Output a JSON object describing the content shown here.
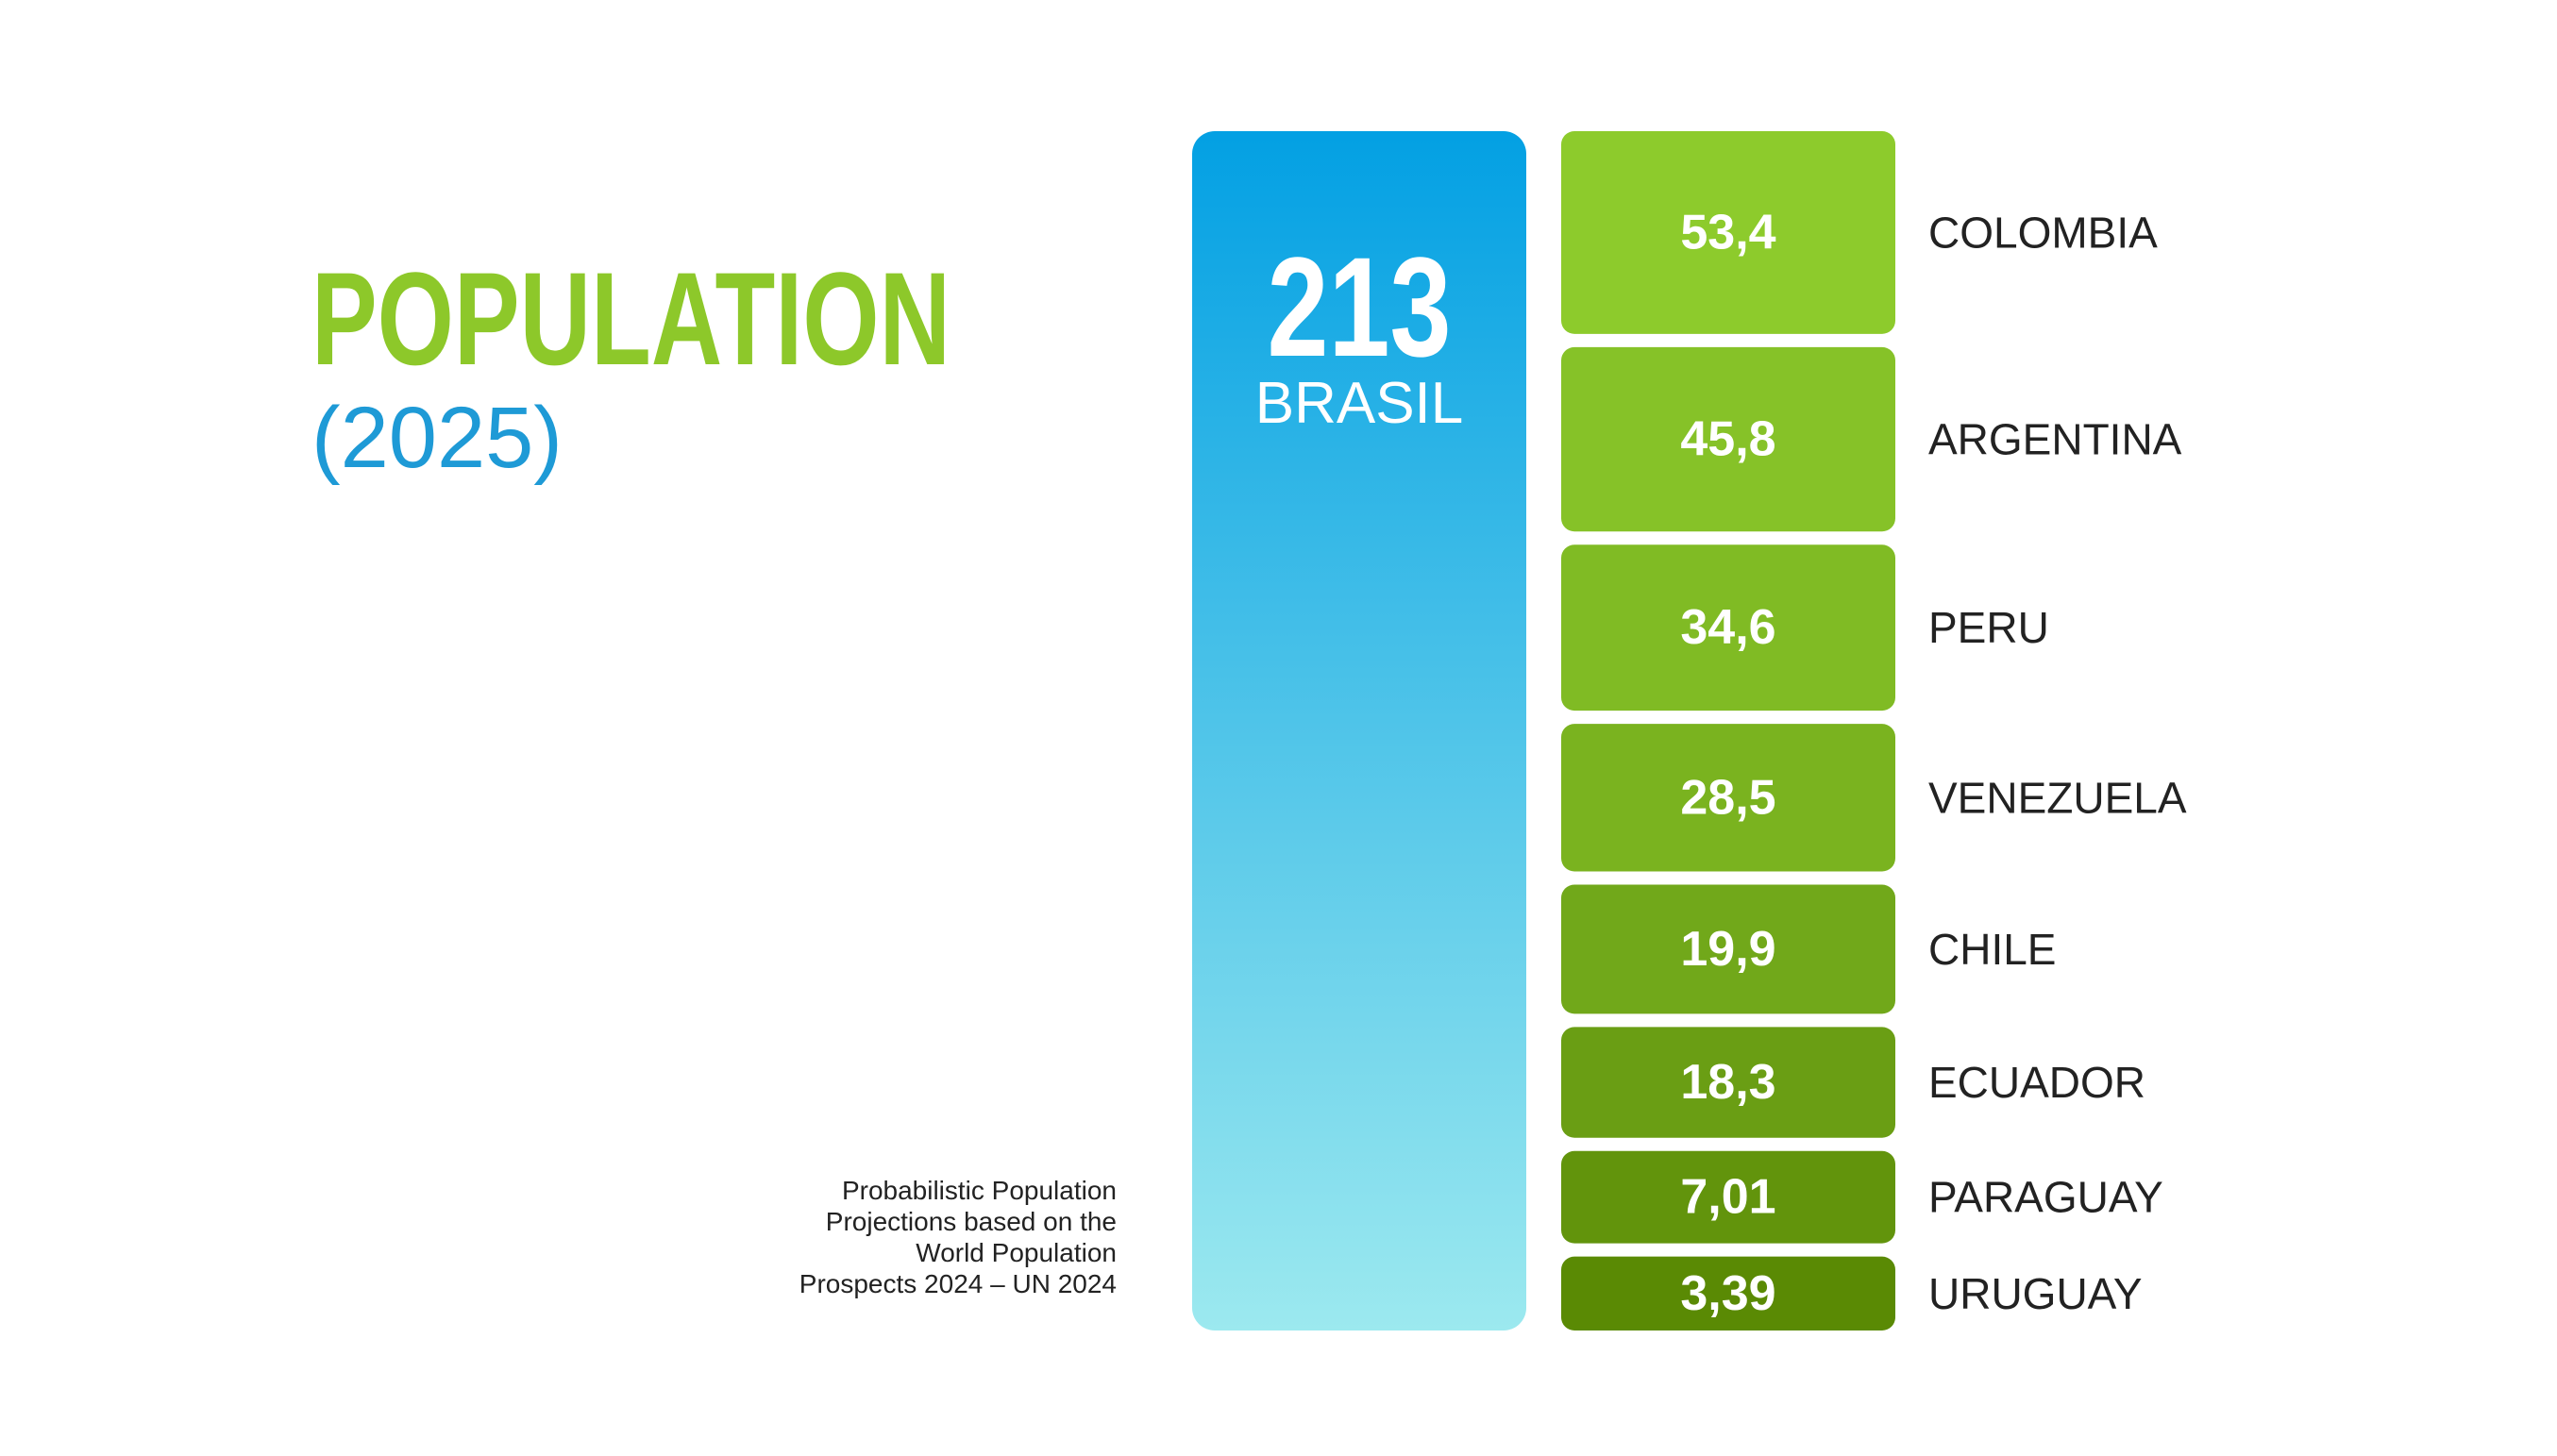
{
  "chart_data": {
    "type": "bar",
    "title": "POPULATION",
    "subtitle": "(2025)",
    "note": [
      "Probabilistic Population",
      "Projections based on the",
      "World Population",
      "Prospects 2024 – UN 2024"
    ],
    "categories": [
      "BRASIL",
      "COLOMBIA",
      "ARGENTINA",
      "PERU",
      "VENEZUELA",
      "CHILE",
      "ECUADOR",
      "PARAGUAY",
      "URUGUAY"
    ],
    "values": [
      213,
      53.4,
      45.8,
      34.6,
      28.5,
      19.9,
      18.3,
      7.01,
      3.39
    ],
    "value_labels": [
      "213",
      "53,4",
      "45,8",
      "34,6",
      "28,5",
      "19,9",
      "18,3",
      "7,01",
      "3,39"
    ],
    "colors": [
      "#03a0e3",
      "#8dcb2c",
      "#86c228",
      "#80bb24",
      "#7ab31f",
      "#71a81a",
      "#6a9e14",
      "#62940c",
      "#5a8a04"
    ]
  }
}
